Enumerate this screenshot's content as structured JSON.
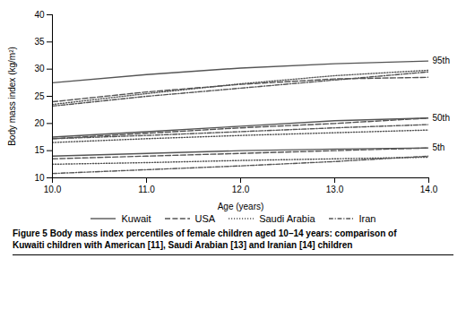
{
  "chart_data": {
    "type": "line",
    "xlabel": "Age (years)",
    "ylabel": "Body mass index (kg/m²)",
    "caption": "Figure 5 Body mass index percentiles of female children aged 10–14 years: comparison of\nKuwaiti children with American [11], Saudi Arabian [13] and Iranian [14] children",
    "x": [
      10,
      11,
      12,
      13,
      14
    ],
    "series": [
      {
        "name": "Kuwait",
        "color": "#555555",
        "line_style": "solid",
        "values": [
          [
            27.5,
            29.0,
            30.2,
            31.0,
            31.5
          ],
          [
            17.5,
            18.5,
            19.5,
            20.5,
            21.0
          ],
          [
            14.0,
            14.5,
            15.0,
            15.3,
            15.5
          ]
        ]
      },
      {
        "name": "USA",
        "color": "#555555",
        "line_style": "dashed",
        "values": [
          [
            24.0,
            25.8,
            27.2,
            28.2,
            28.5
          ],
          [
            17.2,
            18.2,
            19.2,
            20.0,
            21.0
          ],
          [
            13.5,
            14.0,
            14.5,
            15.0,
            15.5
          ]
        ]
      },
      {
        "name": "Saudi Arabia",
        "color": "#555555",
        "line_style": "dotted",
        "values": [
          [
            23.5,
            25.5,
            27.3,
            28.8,
            29.8
          ],
          [
            16.5,
            17.2,
            17.8,
            18.3,
            18.8
          ],
          [
            12.5,
            12.8,
            13.2,
            13.5,
            13.8
          ]
        ]
      },
      {
        "name": "Iran",
        "color": "#555555",
        "line_style": "dashdot",
        "values": [
          [
            23.2,
            25.0,
            26.5,
            28.0,
            29.5
          ],
          [
            17.2,
            17.8,
            18.5,
            19.2,
            19.8
          ],
          [
            10.8,
            11.5,
            12.2,
            13.0,
            14.0
          ]
        ]
      }
    ],
    "annotations": [
      {
        "text": "95th",
        "x": 14,
        "y": 31.5
      },
      {
        "text": "50th",
        "x": 14,
        "y": 21.0
      },
      {
        "text": "5th",
        "x": 14,
        "y": 15.5
      }
    ],
    "xlim": [
      10,
      14
    ],
    "ylim": [
      10,
      40
    ],
    "xticks": [
      10,
      11,
      12,
      13,
      14
    ],
    "yticks": [
      10,
      15,
      20,
      25,
      30,
      35,
      40
    ],
    "grid": false,
    "legend": "bottom"
  }
}
